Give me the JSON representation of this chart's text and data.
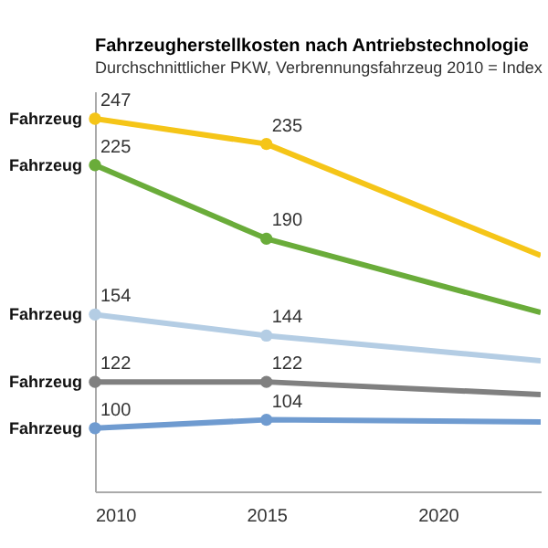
{
  "chart_data": {
    "type": "line",
    "title": "Fahrzeugherstellkosten nach Antriebstechnologie",
    "subtitle": "Durchschnittlicher PKW, Verbrennungsfahrzeug 2010 = Index",
    "x": [
      2010,
      2015,
      2023
    ],
    "xlim": [
      2010,
      2023
    ],
    "xticks": [
      2010,
      2015,
      2020
    ],
    "ylim": [
      70,
      260
    ],
    "tick_labels": "x",
    "grid": false,
    "marker": "circle",
    "line_style": "solid",
    "series": [
      {
        "name": "Fahrzeug",
        "color": "#f5c518",
        "values": [
          247,
          235,
          182
        ],
        "value_labels": [
          "247",
          "235",
          null
        ]
      },
      {
        "name": "Fahrzeug",
        "color": "#6aac3a",
        "values": [
          225,
          190,
          155
        ],
        "value_labels": [
          "225",
          "190",
          null
        ]
      },
      {
        "name": "Fahrzeug",
        "color": "#b4cde4",
        "values": [
          154,
          144,
          132
        ],
        "value_labels": [
          "154",
          "144",
          null
        ]
      },
      {
        "name": "Fahrzeug",
        "color": "#808080",
        "values": [
          122,
          122,
          116
        ],
        "value_labels": [
          "122",
          "122",
          null
        ]
      },
      {
        "name": "Fahrzeug",
        "color": "#6f9bd0",
        "values": [
          100,
          104,
          103
        ],
        "value_labels": [
          "100",
          "104",
          null
        ]
      }
    ]
  }
}
